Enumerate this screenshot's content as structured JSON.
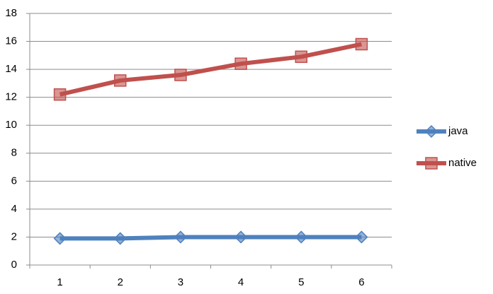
{
  "chart_data": {
    "type": "line",
    "categories": [
      "1",
      "2",
      "3",
      "4",
      "5",
      "6"
    ],
    "series": [
      {
        "name": "java",
        "color": "#4f81bd",
        "marker": "diamond",
        "values": [
          1.9,
          1.9,
          2.0,
          2.0,
          2.0,
          2.0
        ]
      },
      {
        "name": "native",
        "color": "#c0504d",
        "marker": "square",
        "values": [
          12.2,
          13.2,
          13.6,
          14.4,
          14.9,
          15.8
        ]
      }
    ],
    "ylim": [
      0,
      18
    ],
    "yticks": [
      0,
      2,
      4,
      6,
      8,
      10,
      12,
      14,
      16,
      18
    ],
    "grid": true,
    "legend": "right"
  }
}
